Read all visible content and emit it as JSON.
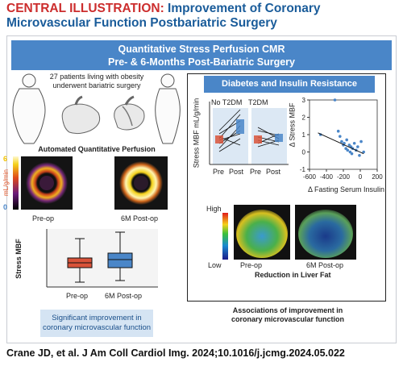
{
  "title": {
    "lead": "CENTRAL ILLUSTRATION:",
    "rest": " Improvement of Coronary Microvascular Function Postbariatric Surgery"
  },
  "banner": {
    "line1": "Quantitative Stress Perfusion CMR",
    "line2": "Pre- & 6-Months Post-Bariatric Surgery"
  },
  "patients_text": {
    "line1": "27 patients living with obesity",
    "line2": "underwent bariatric surgery"
  },
  "perfusion": {
    "heading": "Automated Quantitative Perfusion",
    "scale_top": "6",
    "scale_bottom": "0",
    "scale_unit": "mL/g/min",
    "pre_label": "Pre-op",
    "post_label": "6M Post-op"
  },
  "boxplot": {
    "ylabel": "Stress MBF",
    "pre_label": "Pre-op",
    "post_label": "6M Post-op",
    "colors": {
      "pre": "#d9533a",
      "post": "#4a86c8"
    }
  },
  "significant_text": {
    "line1": "Significant improvement in",
    "line2": "coronary microvascular function"
  },
  "diabetes": {
    "heading": "Diabetes and Insulin Resistance",
    "ylabel": "Stress MBF mL/g/min",
    "group1": "No T2DM",
    "group2": "T2DM",
    "pre": "Pre",
    "post": "Post"
  },
  "scatter": {
    "ylabel": "Δ Stress MBF",
    "xlabel": "Δ Fasting Serum Insulin",
    "y_ticks": [
      "3",
      "2",
      "1",
      "0",
      "-1"
    ],
    "x_ticks": [
      "-600",
      "-400",
      "-200",
      "0",
      "200"
    ]
  },
  "fat": {
    "scale_high": "High",
    "scale_low": "Low",
    "pre_label": "Pre-op",
    "post_label": "6M Post-op",
    "caption": "Reduction in Liver Fat"
  },
  "associations": {
    "line1": "Associations of improvement in",
    "line2": "coronary microvascular function"
  },
  "citation": "Crane JD, et al. J Am Coll Cardiol Img. 2024;10.1016/j.jcmg.2024.05.022",
  "chart_data": {
    "type": "scatter",
    "xlabel": "Δ Fasting Serum Insulin",
    "ylabel": "Δ Stress MBF",
    "xlim": [
      -600,
      200
    ],
    "ylim": [
      -1,
      3
    ],
    "points": [
      {
        "x": -470,
        "y": 1.0
      },
      {
        "x": -300,
        "y": 3.0
      },
      {
        "x": -260,
        "y": 1.2
      },
      {
        "x": -240,
        "y": 0.9
      },
      {
        "x": -220,
        "y": 0.6
      },
      {
        "x": -200,
        "y": 0.4
      },
      {
        "x": -190,
        "y": 0.5
      },
      {
        "x": -170,
        "y": 0.2
      },
      {
        "x": -160,
        "y": 0.7
      },
      {
        "x": -150,
        "y": 0.1
      },
      {
        "x": -130,
        "y": 0.4
      },
      {
        "x": -120,
        "y": 0.0
      },
      {
        "x": -110,
        "y": 0.3
      },
      {
        "x": -100,
        "y": -0.1
      },
      {
        "x": -90,
        "y": 0.2
      },
      {
        "x": -70,
        "y": 0.5
      },
      {
        "x": -50,
        "y": 0.1
      },
      {
        "x": -30,
        "y": 0.3
      },
      {
        "x": -10,
        "y": -0.2
      },
      {
        "x": 10,
        "y": 0.6
      },
      {
        "x": 40,
        "y": 0.0
      }
    ],
    "trend": {
      "x": [
        -500,
        40
      ],
      "y": [
        1.1,
        -0.1
      ]
    }
  }
}
